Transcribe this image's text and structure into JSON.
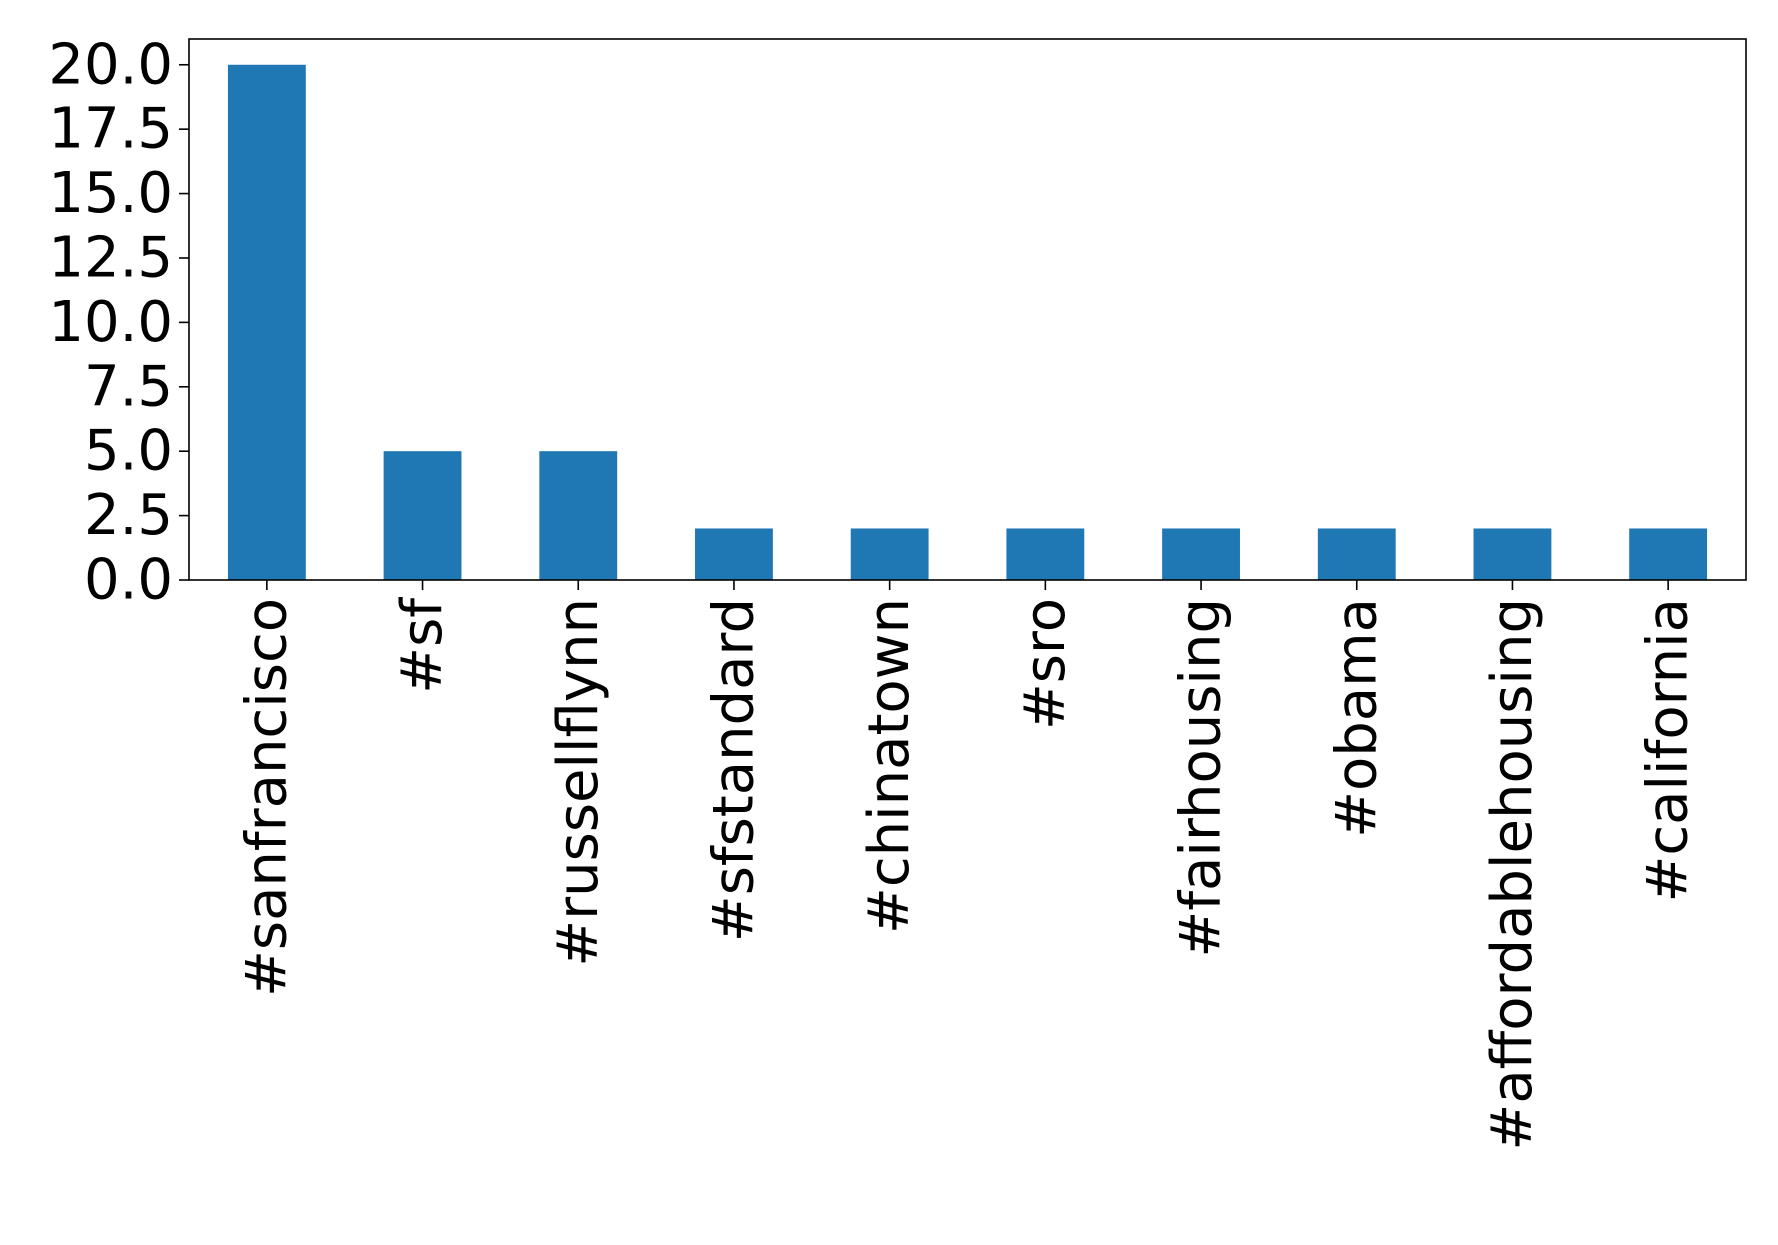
{
  "chart_data": {
    "type": "bar",
    "title": "",
    "xlabel": "",
    "ylabel": "",
    "categories": [
      "#sanfrancisco",
      "#sf",
      "#russellflynn",
      "#sfstandard",
      "#chinatown",
      "#sro",
      "#fairhousing",
      "#obama",
      "#affordablehousing",
      "#california"
    ],
    "values": [
      20,
      5,
      5,
      2,
      2,
      2,
      2,
      2,
      2,
      2
    ],
    "ylim": [
      0,
      21
    ],
    "yticks": [
      "0.0",
      "2.5",
      "5.0",
      "7.5",
      "10.0",
      "12.5",
      "15.0",
      "17.5",
      "20.0"
    ],
    "grid": false,
    "legend": "none",
    "bar_color": "#1f77b4"
  }
}
